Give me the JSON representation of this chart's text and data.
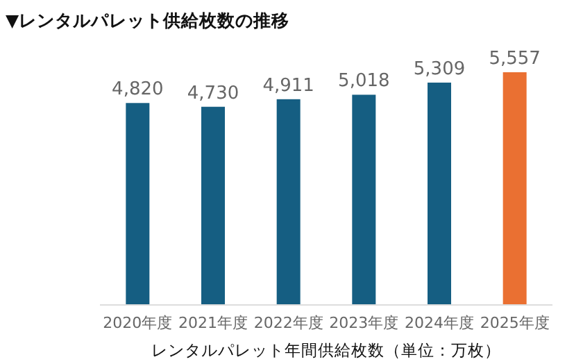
{
  "chart_data": {
    "type": "bar",
    "title": "▼レンタルパレット供給枚数の推移",
    "xlabel": "レンタルパレット年間供給枚数（単位：万枚）",
    "categories": [
      "2020年度",
      "2021年度",
      "2022年度",
      "2023年度",
      "2024年度",
      "2025年度"
    ],
    "values": [
      4820,
      4730,
      4911,
      5018,
      5309,
      5557
    ],
    "colors": [
      "#155e82",
      "#155e82",
      "#155e82",
      "#155e82",
      "#155e82",
      "#ea7032"
    ],
    "value_labels": [
      "4,820",
      "4,730",
      "4,911",
      "5,018",
      "5,309",
      "5,557"
    ]
  }
}
